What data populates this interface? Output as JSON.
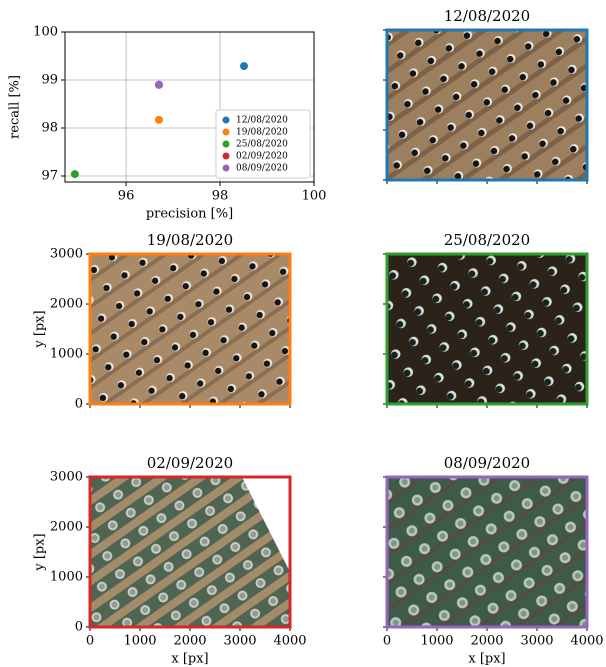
{
  "chart_data": [
    {
      "type": "scatter",
      "xlabel": "precision [%]",
      "ylabel": "recall [%]",
      "xlim": [
        94.7,
        100
      ],
      "ylim": [
        96.875,
        100
      ],
      "xticks": [
        96,
        98,
        100
      ],
      "yticks": [
        97,
        98,
        99,
        100
      ],
      "grid": true,
      "legend": "lower right",
      "series": [
        {
          "name": "12/08/2020",
          "color": "#1f77b4",
          "x": [
            98.51
          ],
          "y": [
            99.29
          ]
        },
        {
          "name": "19/08/2020",
          "color": "#ff7f0e",
          "x": [
            96.7
          ],
          "y": [
            98.17
          ]
        },
        {
          "name": "25/08/2020",
          "color": "#2ca02c",
          "x": [
            94.91
          ],
          "y": [
            97.04
          ]
        },
        {
          "name": "02/09/2020",
          "color": "#d62728",
          "x": [
            96.7
          ],
          "y": [
            98.9
          ]
        },
        {
          "name": "08/09/2020",
          "color": "#9467bd",
          "x": [
            96.7
          ],
          "y": [
            98.9
          ]
        }
      ]
    },
    {
      "type": "image",
      "title": "12/08/2020",
      "color": "#1f77b4",
      "xlim": [
        0,
        4000
      ],
      "ylim": [
        0,
        3000
      ],
      "xticks": [
        0,
        1000,
        2000,
        3000,
        4000
      ],
      "yticks": [
        0,
        1000,
        2000,
        3000
      ],
      "show_xticklabels": false,
      "show_yticklabels": false
    },
    {
      "type": "image",
      "title": "19/08/2020",
      "color": "#ff7f0e",
      "ylabel": "y [px]",
      "xlim": [
        0,
        4000
      ],
      "ylim": [
        0,
        3000
      ],
      "xticks": [
        0,
        1000,
        2000,
        3000,
        4000
      ],
      "yticks": [
        0,
        1000,
        2000,
        3000
      ],
      "show_xticklabels": false,
      "show_yticklabels": true
    },
    {
      "type": "image",
      "title": "25/08/2020",
      "color": "#2ca02c",
      "xlim": [
        0,
        4000
      ],
      "ylim": [
        0,
        3000
      ],
      "xticks": [
        0,
        1000,
        2000,
        3000,
        4000
      ],
      "yticks": [
        0,
        1000,
        2000,
        3000
      ],
      "show_xticklabels": false,
      "show_yticklabels": false
    },
    {
      "type": "image",
      "title": "02/09/2020",
      "color": "#d62728",
      "xlabel": "x [px]",
      "ylabel": "y [px]",
      "xlim": [
        0,
        4000
      ],
      "ylim": [
        0,
        3000
      ],
      "xticks": [
        0,
        1000,
        2000,
        3000,
        4000
      ],
      "yticks": [
        0,
        1000,
        2000,
        3000
      ],
      "show_xticklabels": true,
      "show_yticklabels": true
    },
    {
      "type": "image",
      "title": "08/09/2020",
      "color": "#9467bd",
      "xlabel": "x [px]",
      "xlim": [
        0,
        4000
      ],
      "ylim": [
        0,
        3000
      ],
      "xticks": [
        0,
        1000,
        2000,
        3000,
        4000
      ],
      "yticks": [
        0,
        1000,
        2000,
        3000
      ],
      "show_xticklabels": true,
      "show_yticklabels": false
    }
  ]
}
